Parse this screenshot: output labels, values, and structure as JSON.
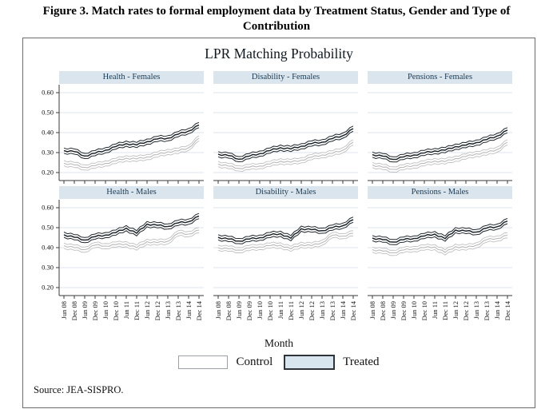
{
  "figure": {
    "title": "Figure 3. Match rates to formal employment data by Treatment Status, Gender and Type of Contribution"
  },
  "chart": {
    "title": "LPR Matching Probability",
    "xlabel": "Month",
    "source": "Source: JEA-SISPRO.",
    "legend": [
      {
        "label": "Control",
        "fill": "#ffffff",
        "border": "#9aa0a6"
      },
      {
        "label": "Treated",
        "fill": "#d9e5ee",
        "border": "#2e343a"
      }
    ],
    "colors": {
      "treated_line": "#20272d",
      "control_line": "#b9b9b9",
      "gridline": "#dde6ec",
      "axis": "#3a3a3a",
      "header_fill": "#dae5ee",
      "header_text": "#1b3a52",
      "tick_text": "#161616"
    }
  },
  "chart_data": {
    "type": "line",
    "title": "LPR Matching Probability",
    "xlabel": "Month",
    "ylabel": "",
    "ylim": [
      0.16,
      0.64
    ],
    "y_ticks": [
      0.2,
      0.3,
      0.4,
      0.5,
      0.6
    ],
    "grid": true,
    "legend_position": "bottom",
    "ci_halfwidth": 0.013,
    "x_tick_labels": [
      "Jun 08",
      "Dec 08",
      "Jun 09",
      "Dec 09",
      "Jun 10",
      "Dec 10",
      "Jun 11",
      "Dec 11",
      "Jun 12",
      "Dec 12",
      "Jun 13",
      "Dec 13",
      "Jun 14",
      "Dec 14"
    ],
    "panels": [
      {
        "title": "Health - Females",
        "row": 0,
        "col": 0,
        "series": [
          {
            "name": "Control",
            "values": [
              0.247,
              0.238,
              0.226,
              0.234,
              0.246,
              0.258,
              0.272,
              0.268,
              0.278,
              0.29,
              0.304,
              0.308,
              0.324,
              0.372
            ]
          },
          {
            "name": "Treated",
            "values": [
              0.31,
              0.305,
              0.283,
              0.297,
              0.312,
              0.33,
              0.345,
              0.338,
              0.355,
              0.368,
              0.372,
              0.392,
              0.408,
              0.438
            ]
          }
        ]
      },
      {
        "title": "Disability - Females",
        "row": 0,
        "col": 1,
        "series": [
          {
            "name": "Control",
            "values": [
              0.243,
              0.232,
              0.221,
              0.227,
              0.233,
              0.243,
              0.257,
              0.252,
              0.262,
              0.277,
              0.288,
              0.296,
              0.312,
              0.352
            ]
          },
          {
            "name": "Treated",
            "values": [
              0.292,
              0.285,
              0.267,
              0.282,
              0.295,
              0.31,
              0.325,
              0.318,
              0.332,
              0.345,
              0.352,
              0.37,
              0.385,
              0.42
            ]
          }
        ]
      },
      {
        "title": "Pensions - Females",
        "row": 0,
        "col": 2,
        "series": [
          {
            "name": "Control",
            "values": [
              0.238,
              0.227,
              0.216,
              0.226,
              0.236,
              0.246,
              0.258,
              0.255,
              0.27,
              0.28,
              0.294,
              0.3,
              0.315,
              0.352
            ]
          },
          {
            "name": "Treated",
            "values": [
              0.29,
              0.282,
              0.266,
              0.278,
              0.288,
              0.298,
              0.308,
              0.312,
              0.33,
              0.337,
              0.35,
              0.365,
              0.383,
              0.412
            ]
          }
        ]
      },
      {
        "title": "Health - Males",
        "row": 1,
        "col": 0,
        "series": [
          {
            "name": "Control",
            "values": [
              0.41,
              0.4,
              0.39,
              0.413,
              0.408,
              0.415,
              0.418,
              0.4,
              0.43,
              0.425,
              0.432,
              0.472,
              0.468,
              0.488
            ]
          },
          {
            "name": "Treated",
            "values": [
              0.465,
              0.452,
              0.438,
              0.455,
              0.463,
              0.475,
              0.498,
              0.472,
              0.518,
              0.512,
              0.506,
              0.524,
              0.53,
              0.558
            ]
          }
        ]
      },
      {
        "title": "Disability - Males",
        "row": 1,
        "col": 1,
        "series": [
          {
            "name": "Control",
            "values": [
              0.4,
              0.394,
              0.388,
              0.398,
              0.404,
              0.41,
              0.412,
              0.394,
              0.415,
              0.41,
              0.425,
              0.462,
              0.458,
              0.472
            ]
          },
          {
            "name": "Treated",
            "values": [
              0.452,
              0.443,
              0.433,
              0.443,
              0.45,
              0.463,
              0.47,
              0.447,
              0.495,
              0.49,
              0.485,
              0.5,
              0.51,
              0.54
            ]
          }
        ]
      },
      {
        "title": "Pensions - Males",
        "row": 1,
        "col": 2,
        "series": [
          {
            "name": "Control",
            "values": [
              0.39,
              0.383,
              0.374,
              0.388,
              0.394,
              0.4,
              0.403,
              0.376,
              0.405,
              0.4,
              0.412,
              0.44,
              0.446,
              0.462
            ]
          },
          {
            "name": "Treated",
            "values": [
              0.448,
              0.44,
              0.428,
              0.44,
              0.446,
              0.458,
              0.468,
              0.445,
              0.488,
              0.483,
              0.478,
              0.498,
              0.505,
              0.533
            ]
          }
        ]
      }
    ]
  }
}
